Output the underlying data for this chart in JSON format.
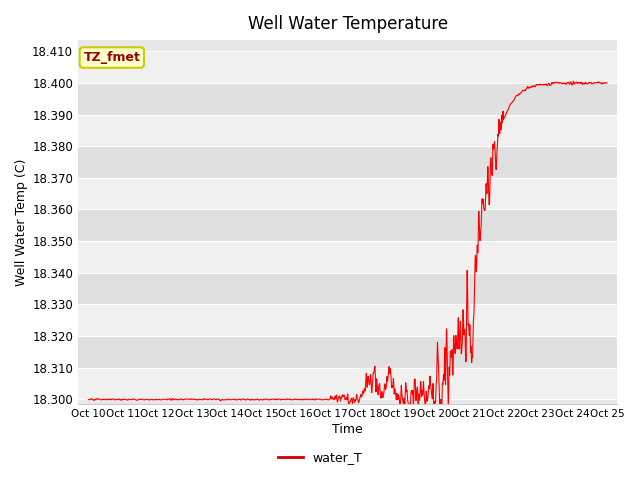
{
  "title": "Well Water Temperature",
  "xlabel": "Time",
  "ylabel": "Well Water Temp (C)",
  "ylim": [
    18.2985,
    18.4135
  ],
  "yticks": [
    18.3,
    18.31,
    18.32,
    18.33,
    18.34,
    18.35,
    18.36,
    18.37,
    18.38,
    18.39,
    18.4,
    18.41
  ],
  "xtick_labels": [
    "Oct 10",
    "Oct 11",
    "Oct 12",
    "Oct 13",
    "Oct 14",
    "Oct 15",
    "Oct 16",
    "Oct 17",
    "Oct 18",
    "Oct 19",
    "Oct 20",
    "Oct 21",
    "Oct 22",
    "Oct 23",
    "Oct 24",
    "Oct 25"
  ],
  "line_color": "#ff0000",
  "line_width": 0.8,
  "legend_label": "water_T",
  "legend_line_color": "#cc0000",
  "annotation_text": "TZ_fmet",
  "annotation_bg": "#ffffcc",
  "annotation_border": "#cccc00",
  "annotation_text_color": "#990000",
  "fig_bg_color": "#ffffff",
  "plot_bg_color": "#e8e8e8",
  "band_color_light": "#f0f0f0",
  "band_color_dark": "#e0e0e0",
  "title_fontsize": 12,
  "axis_fontsize": 9,
  "tick_fontsize": 8.5
}
